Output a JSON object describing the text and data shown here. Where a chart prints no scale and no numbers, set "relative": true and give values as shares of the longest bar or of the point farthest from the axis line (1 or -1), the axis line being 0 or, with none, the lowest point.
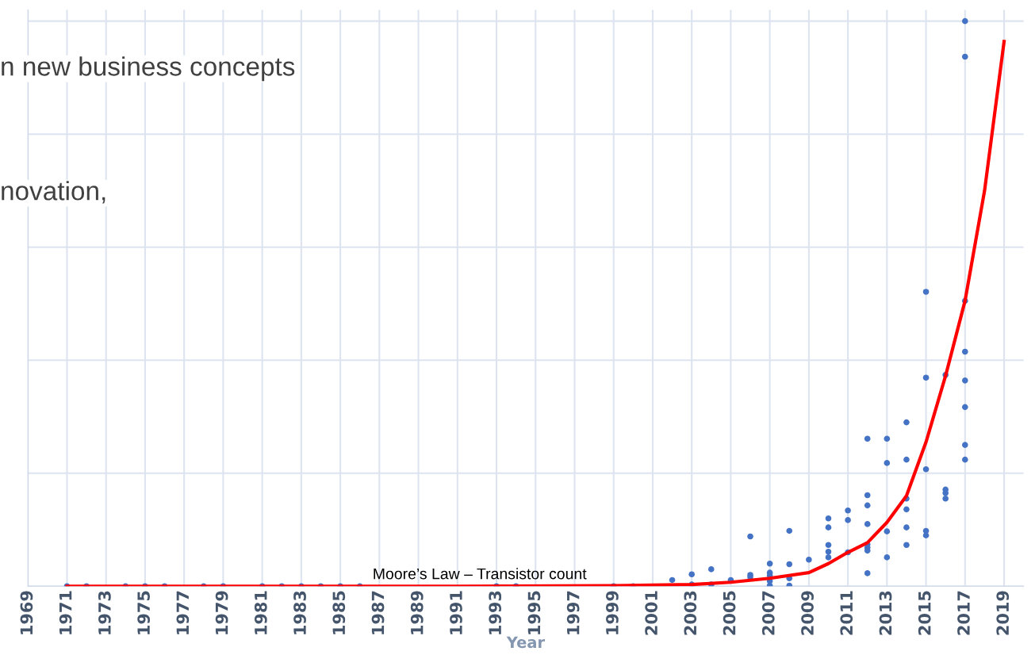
{
  "chart_data": {
    "type": "scatter",
    "relative": true,
    "xlabel": "Year",
    "grid": true,
    "legend": false,
    "xlim": [
      1969,
      2020
    ],
    "xticks": [
      1969,
      1971,
      1973,
      1975,
      1977,
      1979,
      1981,
      1983,
      1985,
      1987,
      1989,
      1991,
      1993,
      1995,
      1997,
      1999,
      2001,
      2003,
      2005,
      2007,
      2009,
      2011,
      2013,
      2015,
      2017,
      2019
    ],
    "annotations": [
      "Moore’s Law – Transistor count",
      "n new business concepts",
      "novation,"
    ],
    "series": [
      {
        "type": "scatter",
        "marker": "circle",
        "color": "#4472c4",
        "x": [
          1971,
          1972,
          1974,
          1975,
          1976,
          1978,
          1979,
          1981,
          1982,
          1983,
          1984,
          1985,
          1986,
          1993,
          1994,
          1999,
          2000,
          2002,
          2003,
          2003,
          2004,
          2004,
          2005,
          2006,
          2006,
          2006,
          2007,
          2007,
          2007,
          2007,
          2007,
          2008,
          2008,
          2008,
          2008,
          2009,
          2010,
          2010,
          2010,
          2010,
          2010,
          2011,
          2011,
          2011,
          2012,
          2012,
          2012,
          2012,
          2012,
          2012,
          2012,
          2012,
          2013,
          2013,
          2013,
          2013,
          2014,
          2014,
          2014,
          2014,
          2014,
          2014,
          2015,
          2015,
          2015,
          2015,
          2015,
          2016,
          2016,
          2016,
          2016,
          2017,
          2017,
          2017,
          2017,
          2017,
          2017,
          2017,
          2017
        ],
        "values": [
          0,
          0,
          0,
          0,
          0,
          0,
          0,
          0,
          0,
          0,
          0,
          0,
          0,
          0,
          0,
          0,
          0,
          0.011,
          0.021,
          0.003,
          0.03,
          0.003,
          0.011,
          0.088,
          0.02,
          0.016,
          0.04,
          0.024,
          0.019,
          0.009,
          0.001,
          0.098,
          0.039,
          0.014,
          0.001,
          0.047,
          0.12,
          0.104,
          0.073,
          0.061,
          0.051,
          0.134,
          0.117,
          0.06,
          0.261,
          0.161,
          0.143,
          0.11,
          0.074,
          0.068,
          0.063,
          0.023,
          0.261,
          0.218,
          0.097,
          0.051,
          0.29,
          0.224,
          0.155,
          0.136,
          0.104,
          0.073,
          0.521,
          0.369,
          0.207,
          0.098,
          0.09,
          0.374,
          0.171,
          0.165,
          0.155,
          1,
          0.937,
          0.505,
          0.415,
          0.364,
          0.317,
          0.25,
          0.224
        ]
      },
      {
        "type": "line",
        "line_style": "solid",
        "color": "#ff0000",
        "x": [
          1971,
          1981,
          1991,
          1999,
          2003,
          2005,
          2007,
          2009,
          2010,
          2011,
          2012,
          2013,
          2014,
          2015,
          2016,
          2017,
          2018,
          2019
        ],
        "values": [
          0,
          0,
          0,
          0.001,
          0.003,
          0.007,
          0.014,
          0.024,
          0.04,
          0.06,
          0.077,
          0.113,
          0.16,
          0.255,
          0.372,
          0.505,
          0.7,
          0.964
        ]
      }
    ]
  }
}
